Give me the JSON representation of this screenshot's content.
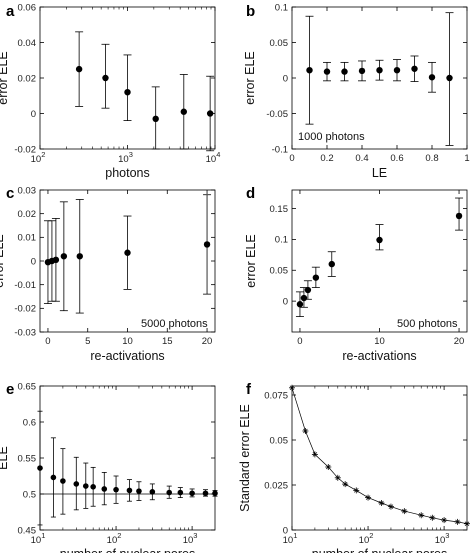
{
  "chart_data": [
    {
      "panel": "a",
      "type": "scatter",
      "xlabel": "photons",
      "ylabel": "error ELE",
      "xscale": "log",
      "xlim": [
        100,
        10000
      ],
      "ylim": [
        -0.02,
        0.06
      ],
      "xticks": [
        {
          "v": 100,
          "b": "10",
          "e": "2"
        },
        {
          "v": 1000,
          "b": "10",
          "e": "3"
        },
        {
          "v": 10000,
          "b": "10",
          "e": "4"
        }
      ],
      "yticks": [
        {
          "v": -0.02,
          "t": "-0.02"
        },
        {
          "v": 0,
          "t": "0"
        },
        {
          "v": 0.02,
          "t": "0.02"
        },
        {
          "v": 0.04,
          "t": "0.04"
        },
        {
          "v": 0.06,
          "t": "0.06"
        }
      ],
      "points": [
        {
          "x": 280,
          "y": 0.025,
          "lo": 0.004,
          "hi": 0.046
        },
        {
          "x": 560,
          "y": 0.02,
          "lo": 0.003,
          "hi": 0.039
        },
        {
          "x": 1000,
          "y": 0.012,
          "lo": -0.004,
          "hi": 0.033
        },
        {
          "x": 2100,
          "y": -0.003,
          "lo": -0.02,
          "hi": 0.015
        },
        {
          "x": 4400,
          "y": 0.001,
          "lo": -0.02,
          "hi": 0.022
        },
        {
          "x": 8800,
          "y": 0.0,
          "lo": -0.021,
          "hi": 0.021
        }
      ]
    },
    {
      "panel": "b",
      "type": "scatter",
      "xlabel": "LE",
      "ylabel": "error ELE",
      "xlim": [
        0,
        1
      ],
      "ylim": [
        -0.1,
        0.1
      ],
      "xticks": [
        {
          "v": 0,
          "t": "0"
        },
        {
          "v": 0.2,
          "t": "0.2"
        },
        {
          "v": 0.4,
          "t": "0.4"
        },
        {
          "v": 0.6,
          "t": "0.6"
        },
        {
          "v": 0.8,
          "t": "0.8"
        },
        {
          "v": 1,
          "t": "1"
        }
      ],
      "yticks": [
        {
          "v": -0.1,
          "t": "-0.1"
        },
        {
          "v": -0.05,
          "t": "-0.05"
        },
        {
          "v": 0,
          "t": "0"
        },
        {
          "v": 0.05,
          "t": "0.05"
        },
        {
          "v": 0.1,
          "t": "0.1"
        }
      ],
      "annotation": "1000 photons",
      "points": [
        {
          "x": 0.1,
          "y": 0.011,
          "lo": -0.065,
          "hi": 0.087
        },
        {
          "x": 0.2,
          "y": 0.009,
          "lo": -0.004,
          "hi": 0.022
        },
        {
          "x": 0.3,
          "y": 0.009,
          "lo": -0.004,
          "hi": 0.022
        },
        {
          "x": 0.4,
          "y": 0.01,
          "lo": -0.004,
          "hi": 0.024
        },
        {
          "x": 0.5,
          "y": 0.011,
          "lo": -0.003,
          "hi": 0.025
        },
        {
          "x": 0.6,
          "y": 0.011,
          "lo": -0.004,
          "hi": 0.026
        },
        {
          "x": 0.7,
          "y": 0.013,
          "lo": -0.005,
          "hi": 0.031
        },
        {
          "x": 0.8,
          "y": 0.001,
          "lo": -0.02,
          "hi": 0.022
        },
        {
          "x": 0.9,
          "y": 0.0,
          "lo": -0.095,
          "hi": 0.092
        }
      ]
    },
    {
      "panel": "c",
      "type": "scatter",
      "xlabel": "re-activations",
      "ylabel": "error ELE",
      "xlim": [
        -1,
        21
      ],
      "ylim": [
        -0.03,
        0.03
      ],
      "xticks": [
        {
          "v": 0,
          "t": "0"
        },
        {
          "v": 5,
          "t": "5"
        },
        {
          "v": 10,
          "t": "10"
        },
        {
          "v": 15,
          "t": "15"
        },
        {
          "v": 20,
          "t": "20"
        }
      ],
      "yticks": [
        {
          "v": -0.03,
          "t": "-0.03"
        },
        {
          "v": -0.02,
          "t": "-0.02"
        },
        {
          "v": -0.01,
          "t": "-0.01"
        },
        {
          "v": 0,
          "t": "0"
        },
        {
          "v": 0.01,
          "t": "0.01"
        },
        {
          "v": 0.02,
          "t": "0.02"
        },
        {
          "v": 0.03,
          "t": "0.03"
        }
      ],
      "annotation": "5000 photons",
      "points": [
        {
          "x": 0,
          "y": -0.0005,
          "lo": -0.018,
          "hi": 0.017
        },
        {
          "x": 0.5,
          "y": 0.0,
          "lo": -0.017,
          "hi": 0.017
        },
        {
          "x": 1,
          "y": 0.0005,
          "lo": -0.017,
          "hi": 0.018
        },
        {
          "x": 2,
          "y": 0.002,
          "lo": -0.021,
          "hi": 0.025
        },
        {
          "x": 4,
          "y": 0.002,
          "lo": -0.022,
          "hi": 0.026
        },
        {
          "x": 10,
          "y": 0.0035,
          "lo": -0.012,
          "hi": 0.019
        },
        {
          "x": 20,
          "y": 0.007,
          "lo": -0.014,
          "hi": 0.028
        }
      ]
    },
    {
      "panel": "d",
      "type": "scatter",
      "xlabel": "re-activations",
      "ylabel": "error ELE",
      "xlim": [
        -1,
        21
      ],
      "ylim": [
        -0.05,
        0.18
      ],
      "xticks": [
        {
          "v": 0,
          "t": "0"
        },
        {
          "v": 10,
          "t": "10"
        },
        {
          "v": 20,
          "t": "20"
        }
      ],
      "yticks": [
        {
          "v": 0,
          "t": "0"
        },
        {
          "v": 0.05,
          "t": "0.05"
        },
        {
          "v": 0.1,
          "t": "0.1"
        },
        {
          "v": 0.15,
          "t": "0.15"
        }
      ],
      "annotation": "500 photons",
      "points": [
        {
          "x": 0,
          "y": -0.005,
          "lo": -0.025,
          "hi": 0.015
        },
        {
          "x": 0.5,
          "y": 0.005,
          "lo": -0.01,
          "hi": 0.022
        },
        {
          "x": 1,
          "y": 0.018,
          "lo": 0.003,
          "hi": 0.033
        },
        {
          "x": 2,
          "y": 0.038,
          "lo": 0.022,
          "hi": 0.055
        },
        {
          "x": 4,
          "y": 0.06,
          "lo": 0.04,
          "hi": 0.08
        },
        {
          "x": 10,
          "y": 0.099,
          "lo": 0.083,
          "hi": 0.124
        },
        {
          "x": 20,
          "y": 0.138,
          "lo": 0.115,
          "hi": 0.167
        }
      ]
    },
    {
      "panel": "e",
      "type": "scatter",
      "xlabel": "number of nuclear pores",
      "ylabel": "ELE",
      "xscale": "log",
      "xlim": [
        10,
        2000
      ],
      "ylim": [
        0.45,
        0.65
      ],
      "reference_line": 0.5,
      "xticks": [
        {
          "v": 10,
          "b": "10",
          "e": "1"
        },
        {
          "v": 100,
          "b": "10",
          "e": "2"
        },
        {
          "v": 1000,
          "b": "10",
          "e": "3"
        }
      ],
      "yticks": [
        {
          "v": 0.45,
          "t": "0.45"
        },
        {
          "v": 0.5,
          "t": "0.5"
        },
        {
          "v": 0.55,
          "t": "0.55"
        },
        {
          "v": 0.6,
          "t": "0.6"
        },
        {
          "v": 0.65,
          "t": "0.65"
        }
      ],
      "points": [
        {
          "x": 10,
          "y": 0.536,
          "lo": 0.457,
          "hi": 0.615
        },
        {
          "x": 15,
          "y": 0.523,
          "lo": 0.468,
          "hi": 0.578
        },
        {
          "x": 20,
          "y": 0.518,
          "lo": 0.472,
          "hi": 0.563
        },
        {
          "x": 30,
          "y": 0.514,
          "lo": 0.478,
          "hi": 0.551
        },
        {
          "x": 40,
          "y": 0.511,
          "lo": 0.48,
          "hi": 0.543
        },
        {
          "x": 50,
          "y": 0.51,
          "lo": 0.483,
          "hi": 0.537
        },
        {
          "x": 70,
          "y": 0.507,
          "lo": 0.485,
          "hi": 0.53
        },
        {
          "x": 100,
          "y": 0.506,
          "lo": 0.487,
          "hi": 0.525
        },
        {
          "x": 150,
          "y": 0.505,
          "lo": 0.49,
          "hi": 0.52
        },
        {
          "x": 200,
          "y": 0.504,
          "lo": 0.491,
          "hi": 0.517
        },
        {
          "x": 300,
          "y": 0.503,
          "lo": 0.492,
          "hi": 0.514
        },
        {
          "x": 500,
          "y": 0.502,
          "lo": 0.494,
          "hi": 0.511
        },
        {
          "x": 700,
          "y": 0.502,
          "lo": 0.495,
          "hi": 0.509
        },
        {
          "x": 1000,
          "y": 0.501,
          "lo": 0.496,
          "hi": 0.507
        },
        {
          "x": 1500,
          "y": 0.501,
          "lo": 0.497,
          "hi": 0.506
        },
        {
          "x": 2000,
          "y": 0.501,
          "lo": 0.497,
          "hi": 0.505
        }
      ]
    },
    {
      "panel": "f",
      "type": "line",
      "xlabel": "number of nuclear pores",
      "ylabel": "Standard error ELE",
      "xscale": "log",
      "xlim": [
        10,
        2000
      ],
      "ylim": [
        0,
        0.08
      ],
      "xticks": [
        {
          "v": 10,
          "b": "10",
          "e": "1"
        },
        {
          "v": 100,
          "b": "10",
          "e": "2"
        },
        {
          "v": 1000,
          "b": "10",
          "e": "3"
        }
      ],
      "yticks": [
        {
          "v": 0,
          "t": "0"
        },
        {
          "v": 0.025,
          "t": "0.025"
        },
        {
          "v": 0.05,
          "t": "0.05"
        },
        {
          "v": 0.075,
          "t": "0.075"
        }
      ],
      "points": [
        {
          "x": 10,
          "y": 0.079
        },
        {
          "x": 15,
          "y": 0.055
        },
        {
          "x": 20,
          "y": 0.042
        },
        {
          "x": 30,
          "y": 0.035
        },
        {
          "x": 40,
          "y": 0.029
        },
        {
          "x": 50,
          "y": 0.0255
        },
        {
          "x": 70,
          "y": 0.022
        },
        {
          "x": 100,
          "y": 0.018
        },
        {
          "x": 150,
          "y": 0.015
        },
        {
          "x": 200,
          "y": 0.013
        },
        {
          "x": 300,
          "y": 0.0105
        },
        {
          "x": 500,
          "y": 0.0082
        },
        {
          "x": 700,
          "y": 0.0068
        },
        {
          "x": 1000,
          "y": 0.0055
        },
        {
          "x": 1500,
          "y": 0.0045
        },
        {
          "x": 2000,
          "y": 0.0035
        }
      ]
    }
  ]
}
